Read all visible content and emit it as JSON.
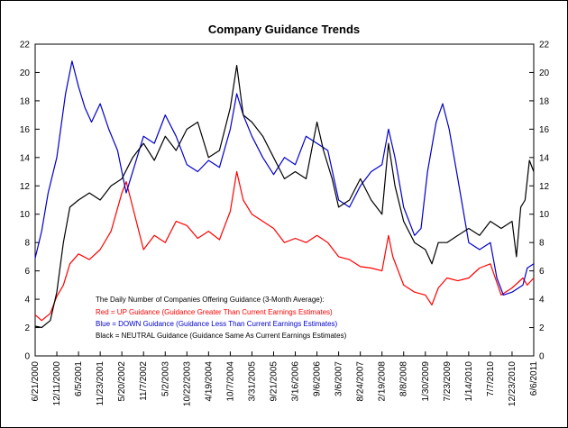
{
  "chart_data": {
    "type": "line",
    "title": "Company Guidance Trends",
    "xlabel": "",
    "ylabel": "",
    "ylim": [
      0,
      22
    ],
    "yticks": [
      0,
      2,
      4,
      6,
      8,
      10,
      12,
      14,
      16,
      18,
      20,
      22
    ],
    "xticks": [
      "6/21/2000",
      "12/11/2000",
      "6/5/2001",
      "11/23/2001",
      "5/20/2002",
      "11/7/2002",
      "5/2/2003",
      "10/22/2003",
      "4/19/2004",
      "10/7/2004",
      "3/31/2005",
      "9/21/2005",
      "3/16/2006",
      "9/6/2006",
      "3/6/2007",
      "8/24/2007",
      "2/19/2008",
      "8/8/2008",
      "1/30/2009",
      "7/23/2009",
      "1/14/2010",
      "7/7/2010",
      "12/23/2010",
      "6/6/2011"
    ],
    "grid": false,
    "legend_position": "bottom-left",
    "legend_title": "The Daily Number of Companies Offering Guidance (3-Month Average):",
    "legend_lines": [
      "Red = UP Guidance (Guidance Greater Than Current Earnings Estimates)",
      "Blue = DOWN Guidance (Guidance Less Than Current Earnings Estimates)",
      "Black = NEUTRAL Guidance (Guidance Same As Current Earnings Estimates)"
    ],
    "series": [
      {
        "color": "#ff0000",
        "points": [
          [
            0,
            2.9
          ],
          [
            0.3,
            2.5
          ],
          [
            0.7,
            3.0
          ],
          [
            1.0,
            4.2
          ],
          [
            1.3,
            5.0
          ],
          [
            1.6,
            6.5
          ],
          [
            2.0,
            7.2
          ],
          [
            2.5,
            6.8
          ],
          [
            3.0,
            7.5
          ],
          [
            3.5,
            8.8
          ],
          [
            4.0,
            11.5
          ],
          [
            4.2,
            12.3
          ],
          [
            4.5,
            10.5
          ],
          [
            5.0,
            7.5
          ],
          [
            5.5,
            8.5
          ],
          [
            6.0,
            8.0
          ],
          [
            6.5,
            9.5
          ],
          [
            7.0,
            9.2
          ],
          [
            7.5,
            8.3
          ],
          [
            8.0,
            8.8
          ],
          [
            8.5,
            8.2
          ],
          [
            9.0,
            10.2
          ],
          [
            9.3,
            13.0
          ],
          [
            9.6,
            11.0
          ],
          [
            10.0,
            10.0
          ],
          [
            10.5,
            9.5
          ],
          [
            11.0,
            9.0
          ],
          [
            11.5,
            8.0
          ],
          [
            12.0,
            8.3
          ],
          [
            12.5,
            8.0
          ],
          [
            13.0,
            8.5
          ],
          [
            13.5,
            8.0
          ],
          [
            14.0,
            7.0
          ],
          [
            14.5,
            6.8
          ],
          [
            15.0,
            6.3
          ],
          [
            15.5,
            6.2
          ],
          [
            16.0,
            6.0
          ],
          [
            16.3,
            8.5
          ],
          [
            16.5,
            7.0
          ],
          [
            17.0,
            5.0
          ],
          [
            17.5,
            4.5
          ],
          [
            18.0,
            4.3
          ],
          [
            18.3,
            3.6
          ],
          [
            18.6,
            4.8
          ],
          [
            19.0,
            5.5
          ],
          [
            19.5,
            5.3
          ],
          [
            20.0,
            5.5
          ],
          [
            20.5,
            6.2
          ],
          [
            21.0,
            6.5
          ],
          [
            21.5,
            4.3
          ],
          [
            22.0,
            4.8
          ],
          [
            22.5,
            5.5
          ],
          [
            22.7,
            5.0
          ],
          [
            23.0,
            5.5
          ]
        ]
      },
      {
        "color": "#0000cc",
        "points": [
          [
            0,
            6.9
          ],
          [
            0.3,
            8.8
          ],
          [
            0.6,
            11.5
          ],
          [
            1.0,
            14.0
          ],
          [
            1.4,
            18.5
          ],
          [
            1.7,
            20.8
          ],
          [
            2.0,
            19.0
          ],
          [
            2.3,
            17.5
          ],
          [
            2.6,
            16.5
          ],
          [
            3.0,
            17.8
          ],
          [
            3.4,
            16.0
          ],
          [
            3.8,
            14.5
          ],
          [
            4.2,
            11.5
          ],
          [
            4.6,
            13.5
          ],
          [
            5.0,
            15.5
          ],
          [
            5.5,
            15.0
          ],
          [
            6.0,
            17.0
          ],
          [
            6.5,
            15.5
          ],
          [
            7.0,
            13.5
          ],
          [
            7.5,
            13.0
          ],
          [
            8.0,
            13.8
          ],
          [
            8.5,
            13.3
          ],
          [
            9.0,
            16.0
          ],
          [
            9.3,
            18.5
          ],
          [
            9.6,
            17.0
          ],
          [
            10.0,
            15.5
          ],
          [
            10.5,
            14.0
          ],
          [
            11.0,
            12.8
          ],
          [
            11.5,
            14.0
          ],
          [
            12.0,
            13.5
          ],
          [
            12.5,
            15.5
          ],
          [
            13.0,
            15.0
          ],
          [
            13.5,
            14.5
          ],
          [
            14.0,
            11.0
          ],
          [
            14.5,
            10.5
          ],
          [
            15.0,
            12.0
          ],
          [
            15.5,
            13.0
          ],
          [
            16.0,
            13.5
          ],
          [
            16.3,
            16.0
          ],
          [
            16.6,
            14.0
          ],
          [
            17.0,
            10.5
          ],
          [
            17.5,
            8.5
          ],
          [
            17.8,
            9.0
          ],
          [
            18.1,
            13.0
          ],
          [
            18.5,
            16.5
          ],
          [
            18.8,
            17.8
          ],
          [
            19.1,
            16.0
          ],
          [
            19.5,
            12.5
          ],
          [
            20.0,
            8.0
          ],
          [
            20.5,
            7.5
          ],
          [
            21.0,
            8.0
          ],
          [
            21.3,
            5.5
          ],
          [
            21.6,
            4.3
          ],
          [
            22.0,
            4.5
          ],
          [
            22.5,
            5.0
          ],
          [
            22.7,
            6.2
          ],
          [
            23.0,
            6.5
          ]
        ]
      },
      {
        "color": "#000000",
        "points": [
          [
            0,
            2.1
          ],
          [
            0.3,
            2.0
          ],
          [
            0.7,
            2.5
          ],
          [
            1.0,
            4.5
          ],
          [
            1.3,
            8.0
          ],
          [
            1.6,
            10.5
          ],
          [
            2.0,
            11.0
          ],
          [
            2.5,
            11.5
          ],
          [
            3.0,
            11.0
          ],
          [
            3.5,
            12.0
          ],
          [
            4.0,
            12.5
          ],
          [
            4.5,
            14.0
          ],
          [
            5.0,
            15.0
          ],
          [
            5.5,
            13.8
          ],
          [
            6.0,
            15.5
          ],
          [
            6.5,
            14.5
          ],
          [
            7.0,
            16.0
          ],
          [
            7.5,
            16.5
          ],
          [
            8.0,
            14.0
          ],
          [
            8.5,
            14.5
          ],
          [
            9.0,
            17.5
          ],
          [
            9.3,
            20.5
          ],
          [
            9.6,
            17.0
          ],
          [
            10.0,
            16.5
          ],
          [
            10.5,
            15.5
          ],
          [
            11.0,
            14.0
          ],
          [
            11.5,
            12.5
          ],
          [
            12.0,
            13.0
          ],
          [
            12.5,
            12.5
          ],
          [
            13.0,
            16.5
          ],
          [
            13.3,
            14.5
          ],
          [
            13.7,
            12.5
          ],
          [
            14.0,
            10.5
          ],
          [
            14.5,
            11.0
          ],
          [
            15.0,
            12.5
          ],
          [
            15.5,
            11.0
          ],
          [
            16.0,
            10.0
          ],
          [
            16.3,
            15.0
          ],
          [
            16.6,
            12.0
          ],
          [
            17.0,
            9.5
          ],
          [
            17.5,
            8.0
          ],
          [
            18.0,
            7.5
          ],
          [
            18.3,
            6.5
          ],
          [
            18.6,
            8.0
          ],
          [
            19.0,
            8.0
          ],
          [
            19.5,
            8.5
          ],
          [
            20.0,
            9.0
          ],
          [
            20.5,
            8.5
          ],
          [
            21.0,
            9.5
          ],
          [
            21.5,
            9.0
          ],
          [
            22.0,
            9.5
          ],
          [
            22.2,
            7.0
          ],
          [
            22.4,
            10.5
          ],
          [
            22.6,
            11.0
          ],
          [
            22.8,
            13.8
          ],
          [
            23.0,
            13.0
          ]
        ]
      }
    ]
  }
}
